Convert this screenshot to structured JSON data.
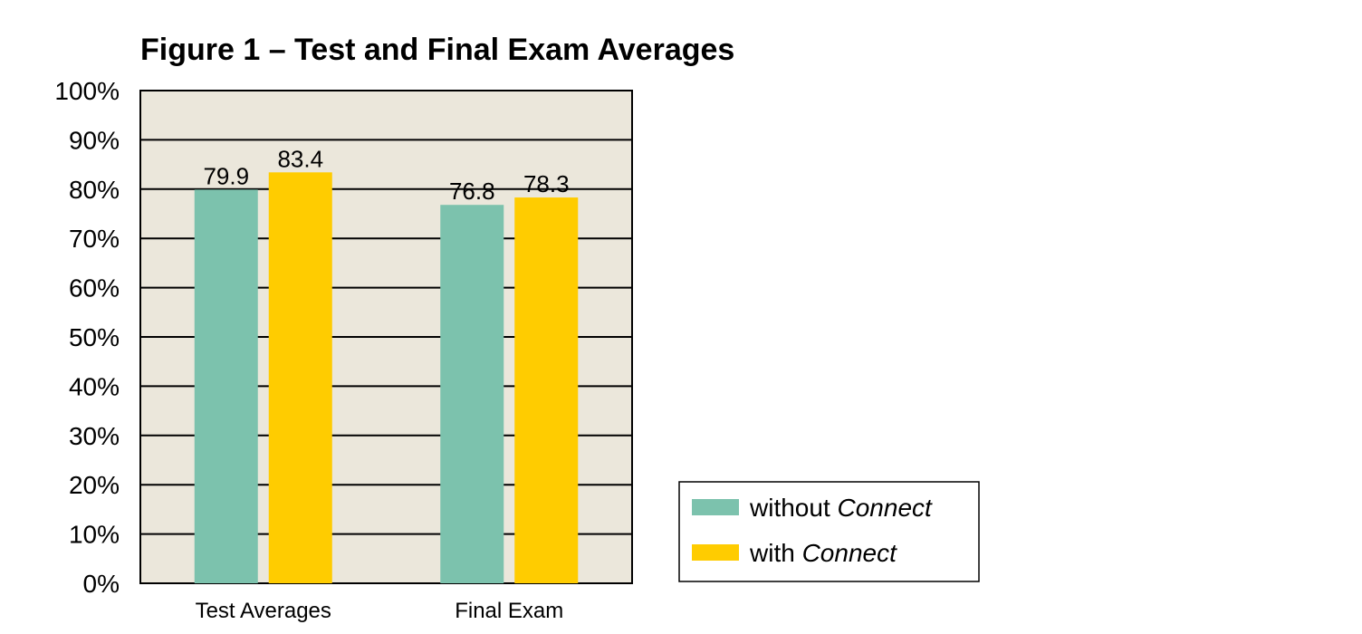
{
  "chart_data": {
    "type": "bar",
    "title": "Figure 1 – Test and Final Exam Averages",
    "xlabel": "",
    "ylabel": "",
    "categories": [
      "Test Averages",
      "Final Exam"
    ],
    "series": [
      {
        "name_prefix": "without ",
        "name_italic": "Connect",
        "color": "#7cc2ad",
        "values": [
          79.9,
          76.8
        ],
        "labels": [
          "79.9",
          "76.8"
        ]
      },
      {
        "name_prefix": "with ",
        "name_italic": "Connect",
        "color": "#ffcc00",
        "values": [
          83.4,
          78.3
        ],
        "labels": [
          "83.4",
          "78.3"
        ]
      }
    ],
    "ylim": [
      0,
      100
    ],
    "yticks": [
      0,
      10,
      20,
      30,
      40,
      50,
      60,
      70,
      80,
      90,
      100
    ],
    "ytick_labels": [
      "0%",
      "10%",
      "20%",
      "30%",
      "40%",
      "50%",
      "60%",
      "70%",
      "80%",
      "90%",
      "100%"
    ],
    "grid": true,
    "plot_background": "#ebe7db",
    "legend_position": "bottom-right, outside plot"
  }
}
